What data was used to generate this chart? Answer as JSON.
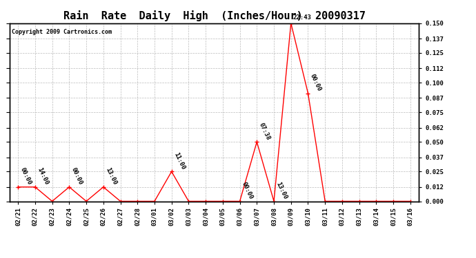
{
  "title": "Rain  Rate  Daily  High  (Inches/Hour)  20090317",
  "copyright": "Copyright 2009 Cartronics.com",
  "x_labels": [
    "02/21",
    "02/22",
    "02/23",
    "02/24",
    "02/25",
    "02/26",
    "02/27",
    "02/28",
    "03/01",
    "03/02",
    "03/03",
    "03/04",
    "03/05",
    "03/06",
    "03/07",
    "03/08",
    "03/09",
    "03/10",
    "03/11",
    "03/12",
    "03/13",
    "03/14",
    "03/15",
    "03/16"
  ],
  "x_indices": [
    0,
    1,
    2,
    3,
    4,
    5,
    6,
    7,
    8,
    9,
    10,
    11,
    12,
    13,
    14,
    15,
    16,
    17,
    18,
    19,
    20,
    21,
    22,
    23
  ],
  "values": [
    0.012,
    0.012,
    0.0,
    0.012,
    0.0,
    0.012,
    0.0,
    0.0,
    0.0,
    0.025,
    0.0,
    0.0,
    0.0,
    0.0,
    0.05,
    0.0,
    0.15,
    0.091,
    0.0,
    0.0,
    0.0,
    0.0,
    0.0,
    0.0
  ],
  "annotations": [
    {
      "idx": 0,
      "label": "00:00",
      "rot": -65
    },
    {
      "idx": 1,
      "label": "14:00",
      "rot": -65
    },
    {
      "idx": 3,
      "label": "00:00",
      "rot": -65
    },
    {
      "idx": 5,
      "label": "13:00",
      "rot": -65
    },
    {
      "idx": 9,
      "label": "11:00",
      "rot": -65
    },
    {
      "idx": 13,
      "label": "00:00",
      "rot": -65
    },
    {
      "idx": 14,
      "label": "07:38",
      "rot": -65
    },
    {
      "idx": 16,
      "label": "22:43",
      "rot": 0
    },
    {
      "idx": 17,
      "label": "00:00",
      "rot": -65
    },
    {
      "idx": 15,
      "label": "13:00",
      "rot": -65
    }
  ],
  "ylim": [
    0.0,
    0.15
  ],
  "yticks": [
    0.0,
    0.012,
    0.025,
    0.037,
    0.05,
    0.062,
    0.075,
    0.087,
    0.1,
    0.112,
    0.125,
    0.137,
    0.15
  ],
  "line_color": "#ff0000",
  "marker_color": "#ff0000",
  "background_color": "#ffffff",
  "grid_color": "#bbbbbb",
  "title_fontsize": 11,
  "annot_fontsize": 6.5,
  "tick_fontsize": 6.5,
  "copy_fontsize": 6
}
